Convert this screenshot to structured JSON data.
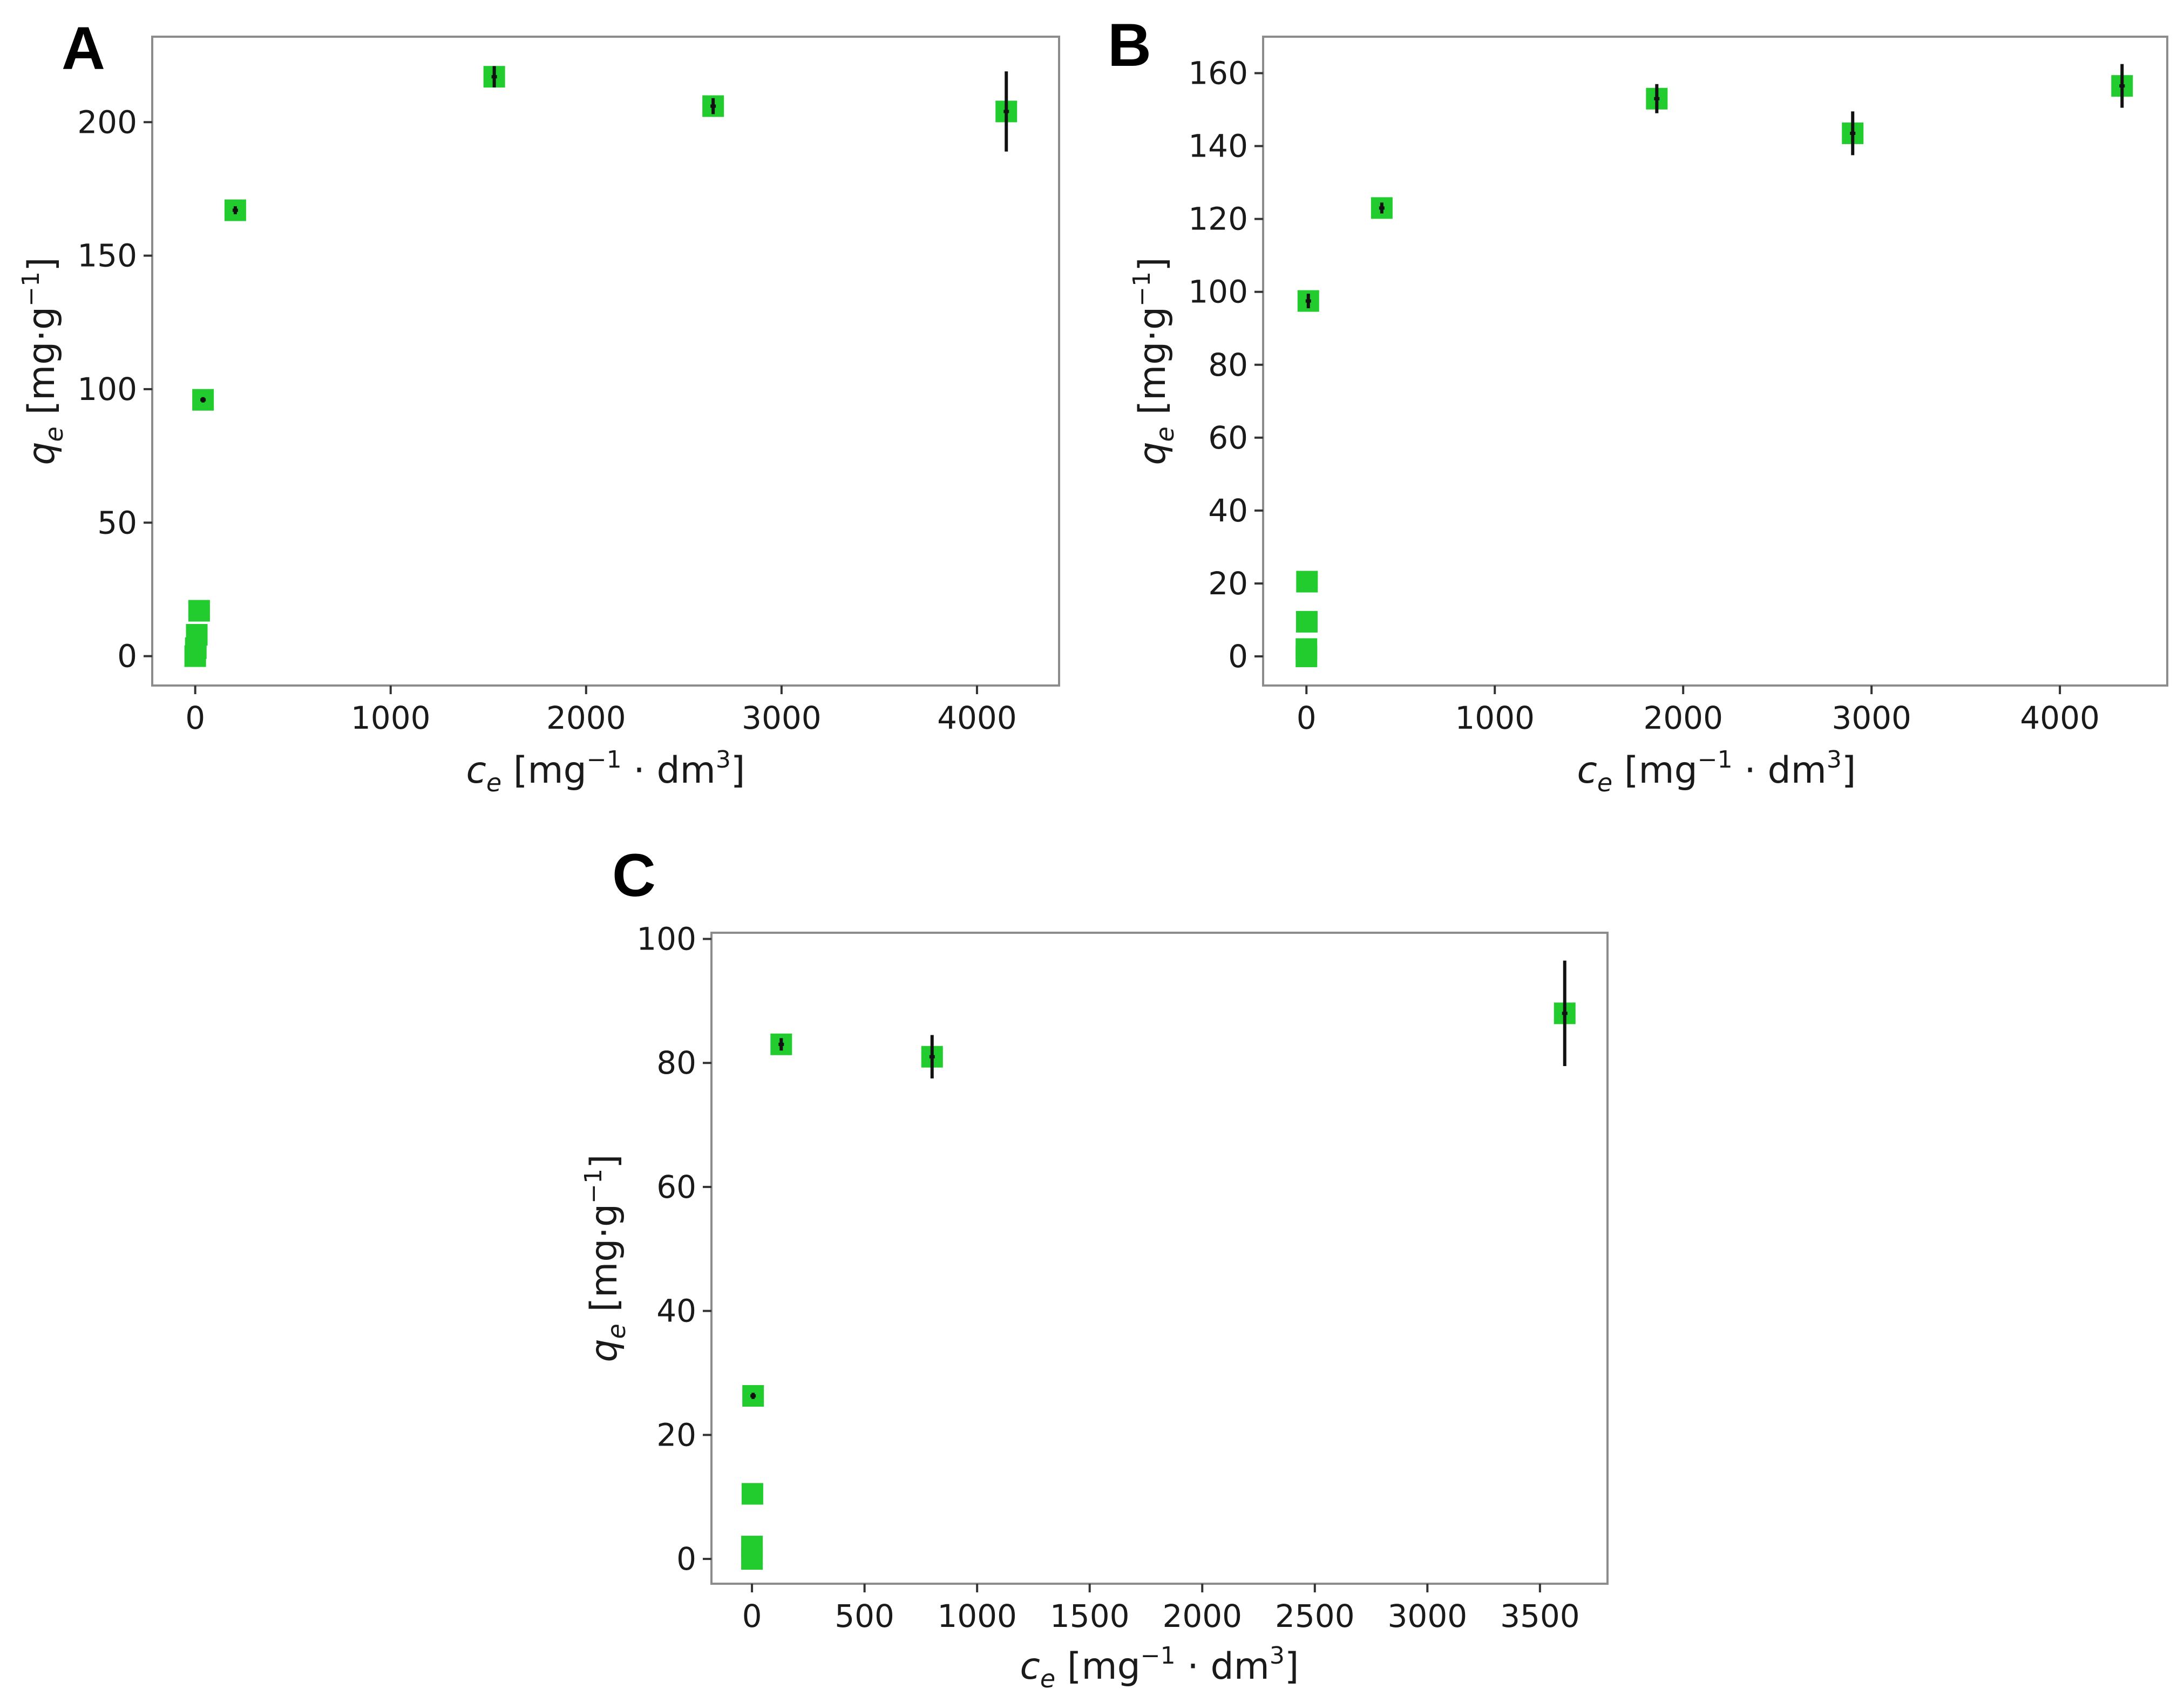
{
  "colors": {
    "marker": "#22cc2e",
    "errorbar": "#111111",
    "frame": "#8c8c8c"
  },
  "chart_data": [
    {
      "panel": "A",
      "type": "scatter",
      "xlabel_var": "c",
      "xlabel_sub": "e",
      "xlabel_unit_pre": "[mg",
      "xlabel_unit_exp1": "−1",
      "xlabel_unit_mid": " · dm",
      "xlabel_unit_exp2": "3",
      "xlabel_unit_post": "]",
      "ylabel_var": "q",
      "ylabel_sub": "e",
      "ylabel_unit_pre": "[mg·g",
      "ylabel_unit_exp": "−1",
      "ylabel_unit_post": "]",
      "xlim": [
        -220,
        4420
      ],
      "ylim": [
        -11,
        232
      ],
      "xticks": [
        0,
        1000,
        2000,
        3000,
        4000
      ],
      "yticks": [
        0,
        50,
        100,
        150,
        200
      ],
      "points": [
        {
          "x": 0,
          "y": 0,
          "err": 0
        },
        {
          "x": 3,
          "y": 3,
          "err": 0
        },
        {
          "x": 8,
          "y": 8,
          "err": 0
        },
        {
          "x": 20,
          "y": 17,
          "err": 0
        },
        {
          "x": 40,
          "y": 96,
          "err": 1
        },
        {
          "x": 205,
          "y": 167,
          "err": 1.5
        },
        {
          "x": 1530,
          "y": 217,
          "err": 4
        },
        {
          "x": 2650,
          "y": 206,
          "err": 3
        },
        {
          "x": 4150,
          "y": 204,
          "err": 15
        }
      ]
    },
    {
      "panel": "B",
      "type": "scatter",
      "xlabel_var": "c",
      "xlabel_sub": "e",
      "xlabel_unit_pre": "[mg",
      "xlabel_unit_exp1": "−1",
      "xlabel_unit_mid": " · dm",
      "xlabel_unit_exp2": "3",
      "xlabel_unit_post": "]",
      "ylabel_var": "q",
      "ylabel_sub": "e",
      "ylabel_unit_pre": "[mg·g",
      "ylabel_unit_exp": "−1",
      "ylabel_unit_post": "]",
      "xlim": [
        -230,
        4570
      ],
      "ylim": [
        -8,
        170
      ],
      "xticks": [
        0,
        1000,
        2000,
        3000,
        4000
      ],
      "yticks": [
        0,
        20,
        40,
        60,
        80,
        100,
        120,
        140,
        160
      ],
      "points": [
        {
          "x": 0,
          "y": 0,
          "err": 0
        },
        {
          "x": 0,
          "y": 2,
          "err": 0
        },
        {
          "x": 2,
          "y": 9.5,
          "err": 0
        },
        {
          "x": 3,
          "y": 20.5,
          "err": 0
        },
        {
          "x": 10,
          "y": 97.5,
          "err": 2
        },
        {
          "x": 400,
          "y": 123,
          "err": 1.5
        },
        {
          "x": 1860,
          "y": 153,
          "err": 4
        },
        {
          "x": 2900,
          "y": 143.5,
          "err": 6
        },
        {
          "x": 4330,
          "y": 156.5,
          "err": 6
        }
      ]
    },
    {
      "panel": "C",
      "type": "scatter",
      "xlabel_var": "c",
      "xlabel_sub": "e",
      "xlabel_unit_pre": "[mg",
      "xlabel_unit_exp1": "−1",
      "xlabel_unit_mid": " · dm",
      "xlabel_unit_exp2": "3",
      "xlabel_unit_post": "]",
      "ylabel_var": "q",
      "ylabel_sub": "e",
      "ylabel_unit_pre": "[mg·g",
      "ylabel_unit_exp": "−1",
      "ylabel_unit_post": "]",
      "xlim": [
        -180,
        3800
      ],
      "ylim": [
        -4,
        101
      ],
      "xticks": [
        0,
        500,
        1000,
        1500,
        2000,
        2500,
        3000,
        3500
      ],
      "yticks": [
        0,
        20,
        40,
        60,
        80,
        100
      ],
      "points": [
        {
          "x": 0,
          "y": 0,
          "err": 0
        },
        {
          "x": 0,
          "y": 2,
          "err": 0
        },
        {
          "x": 2,
          "y": 10.5,
          "err": 0
        },
        {
          "x": 5,
          "y": 26.3,
          "err": 0.5
        },
        {
          "x": 130,
          "y": 83,
          "err": 1
        },
        {
          "x": 800,
          "y": 81,
          "err": 3.5
        },
        {
          "x": 3610,
          "y": 88,
          "err": 8.5
        }
      ]
    }
  ]
}
